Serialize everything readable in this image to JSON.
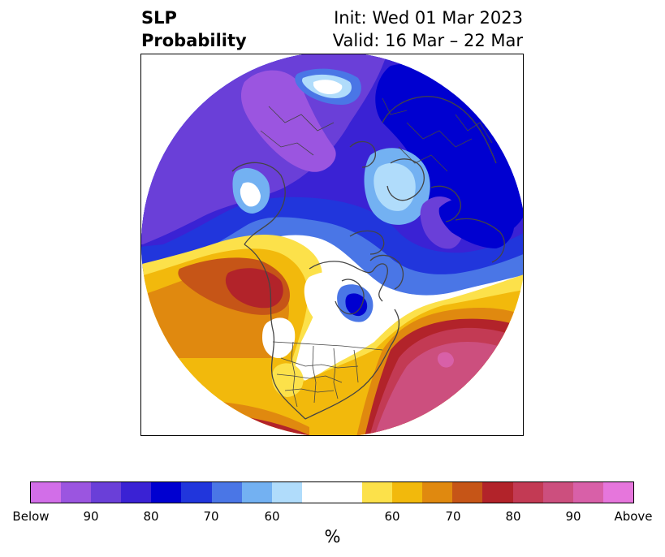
{
  "title": {
    "left_line1": "SLP",
    "left_line2": "Probability",
    "right_line1": "Init: Wed 01 Mar 2023",
    "right_line2": "Valid: 16 Mar – 22 Mar"
  },
  "map": {
    "projection": "north-polar-stereographic",
    "features": [
      "below-normal-probability-region",
      "above-normal-probability-region",
      "coastlines",
      "country-borders",
      "state-borders"
    ]
  },
  "colorbar": {
    "colors": [
      "#d26ee8",
      "#9b55e0",
      "#6a3fd8",
      "#3a22d4",
      "#0000d0",
      "#2136dc",
      "#4a76e6",
      "#73b1f2",
      "#b0dcfb",
      "#ffffff",
      "#fce14a",
      "#f2b90c",
      "#e0890f",
      "#c65517",
      "#b2232a",
      "#c33a54",
      "#cc4f7e",
      "#d860a8",
      "#e676dc"
    ],
    "tick_labels": [
      "Below",
      "90",
      "80",
      "70",
      "60",
      "60",
      "70",
      "80",
      "90",
      "Above"
    ],
    "unit": "%"
  }
}
